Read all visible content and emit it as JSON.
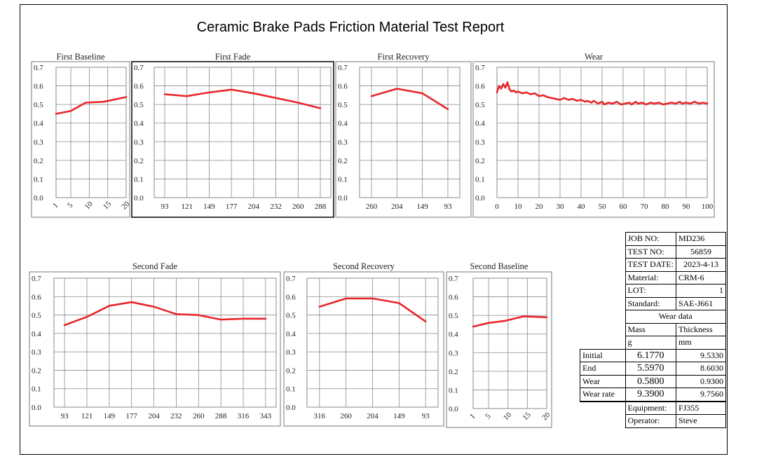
{
  "title": "Ceramic Brake Pads Friction Material Test Report",
  "colors": {
    "line": "#e8262b",
    "grid": "#8a8a8a",
    "text": "#222222"
  },
  "chart_data": [
    {
      "type": "line",
      "title": "First Baseline",
      "categories": [
        "1",
        "5",
        "10",
        "15",
        "20"
      ],
      "x": [
        1,
        5,
        10,
        15,
        20
      ],
      "ylim": [
        0,
        0.7
      ],
      "yticks": [
        "0.0",
        "0.1",
        "0.2",
        "0.3",
        "0.4",
        "0.5",
        "0.6",
        "0.7"
      ],
      "xlabel_rotated": true,
      "series": [
        {
          "x": [
            1,
            5,
            9,
            14,
            20
          ],
          "values": [
            0.45,
            0.465,
            0.51,
            0.515,
            0.54
          ]
        }
      ]
    },
    {
      "type": "line",
      "title": "First Fade",
      "categories": [
        "93",
        "121",
        "149",
        "177",
        "204",
        "232",
        "260",
        "288"
      ],
      "ylim": [
        0,
        0.7
      ],
      "yticks": [
        "0.0",
        "0.1",
        "0.2",
        "0.3",
        "0.4",
        "0.5",
        "0.6",
        "0.7"
      ],
      "series": [
        {
          "values": [
            0.555,
            0.545,
            0.565,
            0.58,
            0.56,
            0.535,
            0.51,
            0.48
          ]
        }
      ]
    },
    {
      "type": "line",
      "title": "First Recovery",
      "categories": [
        "260",
        "204",
        "149",
        "93"
      ],
      "ylim": [
        0,
        0.7
      ],
      "yticks": [
        "0.0",
        "0.1",
        "0.2",
        "0.3",
        "0.4",
        "0.5",
        "0.6",
        "0.7"
      ],
      "series": [
        {
          "values": [
            0.545,
            0.585,
            0.56,
            0.475
          ]
        }
      ]
    },
    {
      "type": "line",
      "title": "Wear",
      "categories": [
        "0",
        "10",
        "20",
        "30",
        "40",
        "50",
        "60",
        "70",
        "80",
        "90",
        "100"
      ],
      "x": [
        0,
        10,
        20,
        30,
        40,
        50,
        60,
        70,
        80,
        90,
        100
      ],
      "ylim": [
        0,
        0.7
      ],
      "yticks": [
        "0.0",
        "0.1",
        "0.2",
        "0.3",
        "0.4",
        "0.5",
        "0.6",
        "0.7"
      ],
      "series": [
        {
          "x": [
            0,
            1,
            2,
            3,
            4,
            5,
            6,
            7,
            8,
            9,
            10,
            12,
            14,
            16,
            18,
            20,
            22,
            24,
            26,
            28,
            30,
            32,
            34,
            36,
            38,
            40,
            42,
            43,
            45,
            46,
            48,
            50,
            51,
            53,
            55,
            57,
            59,
            61,
            63,
            64,
            66,
            67,
            69,
            71,
            73,
            75,
            77,
            79,
            81,
            83,
            85,
            87,
            88,
            90,
            92,
            94,
            96,
            98,
            100
          ],
          "values": [
            0.565,
            0.6,
            0.585,
            0.61,
            0.59,
            0.62,
            0.58,
            0.57,
            0.575,
            0.565,
            0.57,
            0.56,
            0.565,
            0.555,
            0.56,
            0.545,
            0.55,
            0.54,
            0.535,
            0.53,
            0.525,
            0.535,
            0.525,
            0.53,
            0.52,
            0.525,
            0.515,
            0.52,
            0.51,
            0.52,
            0.505,
            0.515,
            0.5,
            0.51,
            0.505,
            0.515,
            0.5,
            0.505,
            0.51,
            0.5,
            0.515,
            0.505,
            0.51,
            0.5,
            0.51,
            0.505,
            0.51,
            0.5,
            0.505,
            0.51,
            0.505,
            0.515,
            0.505,
            0.51,
            0.505,
            0.515,
            0.505,
            0.51,
            0.505
          ]
        }
      ]
    },
    {
      "type": "line",
      "title": "Second Fade",
      "categories": [
        "93",
        "121",
        "149",
        "177",
        "204",
        "232",
        "260",
        "288",
        "316",
        "343"
      ],
      "ylim": [
        0,
        0.7
      ],
      "yticks": [
        "0.0",
        "0.1",
        "0.2",
        "0.3",
        "0.4",
        "0.5",
        "0.6",
        "0.7"
      ],
      "series": [
        {
          "values": [
            0.445,
            0.49,
            0.55,
            0.57,
            0.545,
            0.505,
            0.5,
            0.475,
            0.48,
            0.48
          ]
        }
      ]
    },
    {
      "type": "line",
      "title": "Second Recovery",
      "categories": [
        "316",
        "260",
        "204",
        "149",
        "93"
      ],
      "ylim": [
        0,
        0.7
      ],
      "yticks": [
        "0.0",
        "0.1",
        "0.2",
        "0.3",
        "0.4",
        "0.5",
        "0.6",
        "0.7"
      ],
      "series": [
        {
          "values": [
            0.545,
            0.59,
            0.59,
            0.565,
            0.465
          ]
        }
      ]
    },
    {
      "type": "line",
      "title": "Second Baseline",
      "categories": [
        "1",
        "5",
        "10",
        "15",
        "20"
      ],
      "x": [
        1,
        5,
        10,
        15,
        20
      ],
      "ylim": [
        0,
        0.7
      ],
      "yticks": [
        "0.0",
        "0.1",
        "0.2",
        "0.3",
        "0.4",
        "0.5",
        "0.6",
        "0.7"
      ],
      "xlabel_rotated": true,
      "series": [
        {
          "x": [
            1,
            5,
            9,
            14,
            20
          ],
          "values": [
            0.44,
            0.46,
            0.47,
            0.495,
            0.49
          ]
        }
      ]
    }
  ],
  "info": {
    "job_no_label": "JOB NO:",
    "job_no": "MD236",
    "test_no_label": "TEST NO:",
    "test_no": "56859",
    "test_date_label": "TEST DATE:",
    "test_date": "2023-4-13",
    "material_label": "Material:",
    "material": "CRM-6",
    "lot_label": "LOT:",
    "lot": "1",
    "standard_label": "Standard:",
    "standard": "SAE-J661",
    "wear_data_label": "Wear data",
    "mass_label": "Mass",
    "thickness_label": "Thickness",
    "mass_unit": "g",
    "thickness_unit": "mm",
    "rows": [
      {
        "label": "Initial",
        "mass": "6.1770",
        "thickness": "9.5330"
      },
      {
        "label": "End",
        "mass": "5.5970",
        "thickness": "8.6030"
      },
      {
        "label": "Wear",
        "mass": "0.5800",
        "thickness": "0.9300"
      },
      {
        "label": "Wear rate",
        "mass": "9.3900",
        "thickness": "9.7560"
      }
    ],
    "equipment_label": "Equipment:",
    "equipment": "FJ355",
    "operator_label": "Operator:",
    "operator": "Steve"
  }
}
